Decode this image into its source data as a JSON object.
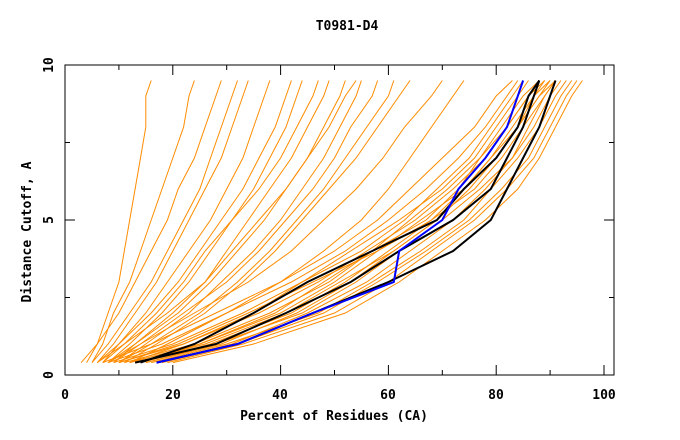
{
  "chart_data": {
    "type": "line",
    "title": "T0981-D4",
    "xlabel": "Percent of Residues (CA)",
    "ylabel": "Distance Cutoff, A",
    "xlim": [
      0,
      100
    ],
    "ylim": [
      0,
      10
    ],
    "x_ticks": [
      "0",
      "20",
      "40",
      "60",
      "80",
      "100"
    ],
    "y_ticks": [
      "0",
      "5",
      "10"
    ],
    "grid": false,
    "colors": {
      "models": "#ff8c00",
      "highlight_black": "#000000",
      "highlight_blue": "#0000ff"
    },
    "distance_cutoffs": [
      0.4,
      1,
      2,
      3,
      4,
      5,
      6,
      7,
      8,
      9,
      9.5
    ],
    "model_curves": [
      [
        10,
        22,
        35,
        44,
        53,
        62,
        70,
        76,
        80,
        84,
        86
      ],
      [
        12,
        25,
        40,
        50,
        58,
        66,
        74,
        80,
        84,
        87,
        89
      ],
      [
        15,
        28,
        44,
        54,
        62,
        70,
        77,
        83,
        87,
        90,
        92
      ],
      [
        18,
        32,
        48,
        58,
        67,
        75,
        81,
        86,
        89,
        92,
        94
      ],
      [
        20,
        35,
        52,
        62,
        70,
        78,
        84,
        88,
        91,
        94,
        96
      ],
      [
        8,
        18,
        30,
        42,
        52,
        60,
        67,
        73,
        78,
        82,
        84
      ],
      [
        11,
        24,
        38,
        49,
        57,
        64,
        71,
        77,
        81,
        85,
        88
      ],
      [
        14,
        27,
        42,
        52,
        60,
        68,
        76,
        81,
        85,
        89,
        91
      ],
      [
        16,
        30,
        47,
        57,
        66,
        74,
        79,
        84,
        88,
        91,
        93
      ],
      [
        13,
        26,
        41,
        51,
        61,
        69,
        75,
        80,
        84,
        88,
        90
      ],
      [
        9,
        20,
        33,
        44,
        55,
        63,
        69,
        75,
        79,
        83,
        85
      ],
      [
        17,
        31,
        45,
        56,
        64,
        72,
        78,
        83,
        86,
        89,
        91
      ],
      [
        12,
        22,
        36,
        47,
        56,
        65,
        72,
        78,
        82,
        86,
        89
      ],
      [
        19,
        33,
        50,
        60,
        68,
        76,
        82,
        87,
        90,
        93,
        95
      ],
      [
        10,
        21,
        34,
        46,
        58,
        68,
        74,
        79,
        83,
        87,
        90
      ],
      [
        15,
        29,
        43,
        53,
        61,
        69,
        74,
        79,
        84,
        88,
        91
      ],
      [
        7,
        16,
        28,
        40,
        50,
        58,
        64,
        70,
        76,
        80,
        83
      ],
      [
        14,
        25,
        39,
        48,
        57,
        67,
        73,
        77,
        82,
        86,
        88
      ],
      [
        4,
        6,
        8,
        10,
        11,
        12,
        13,
        14,
        15,
        15,
        16
      ],
      [
        5,
        7,
        9,
        12,
        14,
        16,
        18,
        20,
        22,
        23,
        24
      ],
      [
        3,
        6,
        10,
        13,
        16,
        19,
        21,
        24,
        26,
        28,
        29
      ],
      [
        6,
        9,
        13,
        17,
        20,
        23,
        26,
        29,
        31,
        33,
        34
      ],
      [
        5,
        8,
        12,
        16,
        19,
        22,
        25,
        27,
        29,
        31,
        32
      ],
      [
        7,
        10,
        15,
        19,
        23,
        27,
        30,
        33,
        35,
        37,
        38
      ],
      [
        6,
        10,
        16,
        21,
        25,
        29,
        33,
        36,
        39,
        41,
        42
      ],
      [
        8,
        12,
        18,
        23,
        27,
        31,
        35,
        38,
        41,
        43,
        44
      ],
      [
        7,
        11,
        17,
        22,
        26,
        31,
        36,
        40,
        43,
        46,
        47
      ],
      [
        9,
        13,
        20,
        26,
        30,
        34,
        38,
        42,
        45,
        48,
        49
      ],
      [
        8,
        13,
        21,
        27,
        32,
        37,
        41,
        45,
        48,
        51,
        52
      ],
      [
        10,
        15,
        23,
        29,
        35,
        40,
        44,
        48,
        51,
        54,
        55
      ],
      [
        6,
        11,
        19,
        26,
        31,
        36,
        41,
        45,
        49,
        52,
        54
      ],
      [
        9,
        14,
        22,
        30,
        36,
        41,
        46,
        50,
        53,
        57,
        58
      ],
      [
        11,
        17,
        26,
        33,
        39,
        44,
        49,
        54,
        58,
        62,
        64
      ],
      [
        8,
        14,
        24,
        34,
        42,
        48,
        54,
        59,
        63,
        68,
        70
      ],
      [
        12,
        19,
        30,
        40,
        48,
        55,
        60,
        64,
        68,
        72,
        74
      ],
      [
        10,
        16,
        25,
        32,
        38,
        43,
        48,
        52,
        56,
        60,
        61
      ]
    ],
    "highlight_black_curves": [
      [
        13,
        28,
        41,
        53,
        62,
        72,
        79,
        82,
        85,
        87,
        88
      ],
      [
        17,
        32,
        46,
        60,
        72,
        79,
        82,
        85,
        88,
        90,
        91
      ],
      [
        14,
        24,
        35,
        45,
        57,
        69,
        74,
        80,
        84,
        86,
        88
      ]
    ],
    "highlight_blue_curve": [
      17,
      32,
      46,
      61,
      62,
      70,
      73,
      78,
      82,
      84,
      85
    ]
  }
}
